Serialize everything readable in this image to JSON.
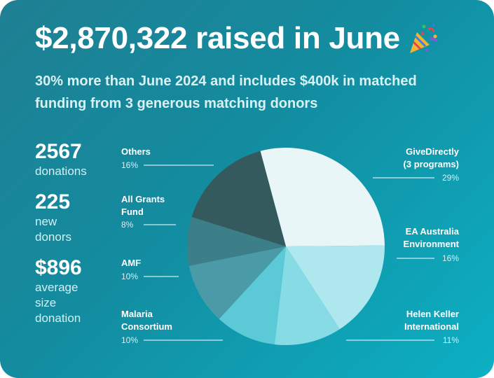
{
  "headline": "$2,870,322 raised in June",
  "headline_icon": "party-popper-icon",
  "subhead": "30% more than June 2024 and includes $400k in matched funding from 3 generous matching donors",
  "stats": [
    {
      "value": "2567",
      "label": "donations"
    },
    {
      "value": "225",
      "label": "new\ndonors"
    },
    {
      "value": "$896",
      "label": "average\nsize\ndonation"
    }
  ],
  "colors": {
    "background_start": "#1f7f92",
    "background_end": "#0cb0c4"
  },
  "chart_data": {
    "type": "pie",
    "title": "",
    "slices": [
      {
        "name_lines": [
          "GiveDirectly",
          "(3 programs)"
        ],
        "label": "29%",
        "value": 29,
        "color": "#e8f6f8"
      },
      {
        "name_lines": [
          "EA Australia",
          "Environment"
        ],
        "label": "16%",
        "value": 16,
        "color": "#aee7ee"
      },
      {
        "name_lines": [
          "Helen Keller",
          "International"
        ],
        "label": "11%",
        "value": 11,
        "color": "#86dbe4"
      },
      {
        "name_lines": [
          "Malaria",
          "Consortium"
        ],
        "label": "10%",
        "value": 10,
        "color": "#5bc9d6"
      },
      {
        "name_lines": [
          "AMF"
        ],
        "label": "10%",
        "value": 10,
        "color": "#4a9ba7"
      },
      {
        "name_lines": [
          "All Grants",
          "Fund"
        ],
        "label": "8%",
        "value": 8,
        "color": "#3d7f88"
      },
      {
        "name_lines": [
          "Others"
        ],
        "label": "16%",
        "value": 16,
        "color": "#345a5e"
      }
    ]
  }
}
